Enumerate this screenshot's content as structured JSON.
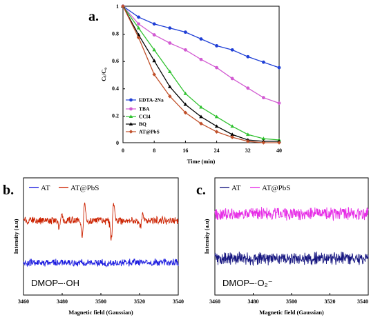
{
  "chart_data": [
    {
      "panel": "a.",
      "type": "line",
      "xlabel": "Time (min)",
      "ylabel": "Cₜ/C₀",
      "xlim": [
        0,
        40
      ],
      "ylim": [
        0,
        1
      ],
      "xticks": [
        "0",
        "8",
        "16",
        "24",
        "32",
        "40"
      ],
      "yticks": [
        "0",
        "0.2",
        "0.4",
        "0.6",
        "0.8",
        "1"
      ],
      "legend_position": "bottom-left",
      "x": [
        0,
        4,
        8,
        12,
        16,
        20,
        24,
        28,
        32,
        36,
        40
      ],
      "series": [
        {
          "name": "EDTA-2Na",
          "color": "#1f3fd6",
          "marker": "circle",
          "values": [
            1.0,
            0.92,
            0.87,
            0.84,
            0.81,
            0.76,
            0.71,
            0.68,
            0.63,
            0.59,
            0.55
          ]
        },
        {
          "name": "TBA",
          "color": "#d25bd2",
          "marker": "circle",
          "values": [
            1.0,
            0.87,
            0.79,
            0.73,
            0.68,
            0.61,
            0.55,
            0.47,
            0.4,
            0.33,
            0.29
          ]
        },
        {
          "name": "CCl4",
          "color": "#2fc12f",
          "marker": "triangle",
          "values": [
            1.0,
            0.84,
            0.68,
            0.52,
            0.36,
            0.26,
            0.19,
            0.12,
            0.06,
            0.03,
            0.02
          ]
        },
        {
          "name": "BQ",
          "color": "#000000",
          "marker": "triangle",
          "values": [
            1.0,
            0.79,
            0.6,
            0.41,
            0.28,
            0.19,
            0.12,
            0.06,
            0.02,
            0.01,
            0.01
          ]
        },
        {
          "name": "AT@PbS",
          "color": "#c0502a",
          "marker": "diamond",
          "values": [
            1.0,
            0.77,
            0.5,
            0.34,
            0.22,
            0.14,
            0.08,
            0.04,
            0.01,
            0.0,
            0.0
          ]
        }
      ]
    },
    {
      "panel": "b.",
      "type": "line",
      "xlabel": "Magnetic field (Gaussian)",
      "ylabel": "Intensity (a.u)",
      "xlim": [
        3460,
        3540
      ],
      "xticks": [
        "3460",
        "3480",
        "3500",
        "3520",
        "3540"
      ],
      "legend_position": "top",
      "label": "DMOP–·OH",
      "series": [
        {
          "name": "AT",
          "color": "#1a1adf",
          "offset": 0.0,
          "noise": 1.0,
          "peaks": []
        },
        {
          "name": "AT@PbS",
          "color": "#cc2200",
          "offset": 1.0,
          "noise": 1.0,
          "peaks": [
            [
              3479,
              0.55
            ],
            [
              3491,
              1.4
            ],
            [
              3506,
              1.6
            ],
            [
              3521,
              0.55
            ]
          ]
        }
      ]
    },
    {
      "panel": "c.",
      "type": "line",
      "xlabel": "Magnetic field (Gaussian)",
      "ylabel": "Intensity (a.u)",
      "xlim": [
        3460,
        3540
      ],
      "xticks": [
        "3460",
        "3480",
        "3500",
        "3520",
        "3540"
      ],
      "legend_position": "top",
      "label": "DMOP–·O₂⁻",
      "series": [
        {
          "name": "AT",
          "color": "#161680",
          "offset": 0.0,
          "noise": 1.0,
          "peaks": []
        },
        {
          "name": "AT@PbS",
          "color": "#e62be6",
          "offset": 1.0,
          "noise": 1.0,
          "peaks": []
        }
      ]
    }
  ]
}
